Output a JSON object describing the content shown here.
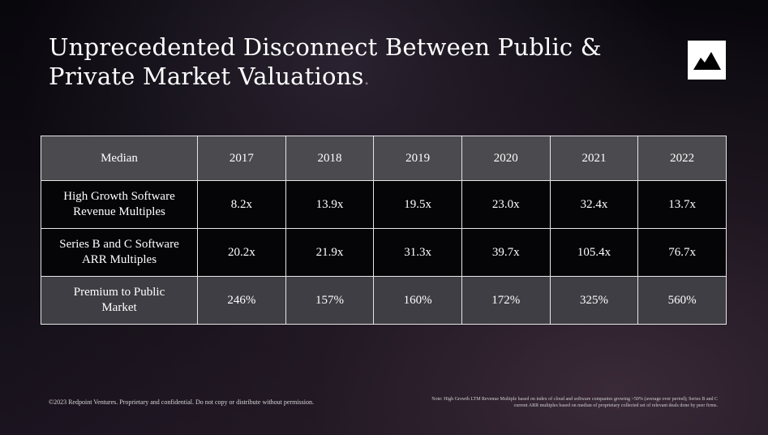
{
  "slide": {
    "title": "Unprecedented Disconnect Between Public & Private Market Valuations",
    "title_suffix": ".",
    "logo_icon": "mountain-logo-icon"
  },
  "table": {
    "header": [
      "Median",
      "2017",
      "2018",
      "2019",
      "2020",
      "2021",
      "2022"
    ],
    "rows": [
      {
        "label_line1": "High Growth Software",
        "label_line2": "Revenue Multiples",
        "values": [
          "8.2x",
          "13.9x",
          "19.5x",
          "23.0x",
          "32.4x",
          "13.7x"
        ]
      },
      {
        "label_line1": "Series B and C Software",
        "label_line2": "ARR Multiples",
        "values": [
          "20.2x",
          "21.9x",
          "31.3x",
          "39.7x",
          "105.4x",
          "76.7x"
        ]
      },
      {
        "label_line1": "Premium to Public",
        "label_line2": "Market",
        "values": [
          "246%",
          "157%",
          "160%",
          "172%",
          "325%",
          "560%"
        ]
      }
    ]
  },
  "footer": {
    "copyright": "©2023 Redpoint Ventures. Proprietary and confidential. Do not copy or distribute without permission.",
    "note_line1": "Note: High Growth LTM Revenue Multiple based on index of cloud and software companies growing >50% (average over period); Series B and C",
    "note_line2": "current ARR multiples based on median of proprietary collected set of relevant deals done by peer firms."
  },
  "colors": {
    "header_bg": "#4a4a4f",
    "body_bg": "#050508",
    "premium_bg": "#3f3e44",
    "text": "#ffffff"
  }
}
